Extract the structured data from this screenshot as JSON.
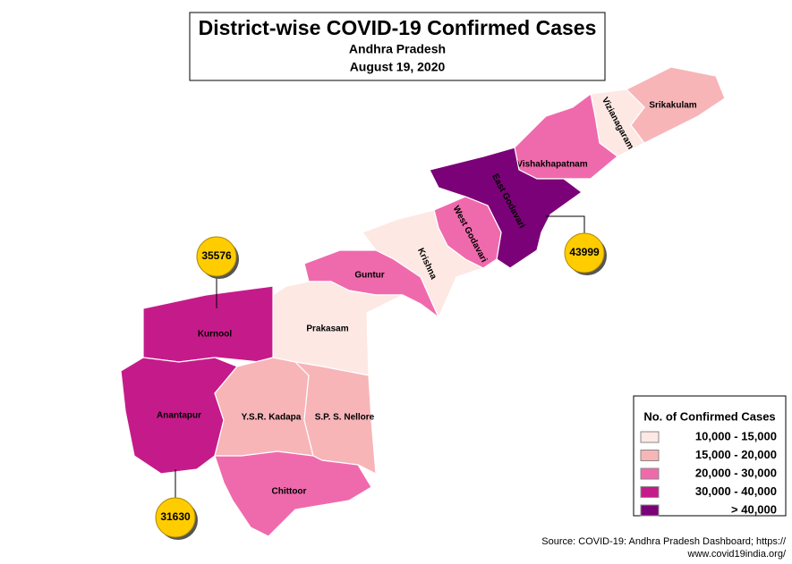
{
  "title": "District-wise COVID-19 Confirmed Cases",
  "subtitle": "Andhra Pradesh",
  "date": "August 19, 2020",
  "legend": {
    "title": "No. of Confirmed Cases",
    "entries": [
      {
        "label": "10,000 - 15,000",
        "color": "#fde8e4"
      },
      {
        "label": "15,000 - 20,000",
        "color": "#f7b5b8"
      },
      {
        "label": "20,000 - 30,000",
        "color": "#ef6aac"
      },
      {
        "label": "30,000 - 40,000",
        "color": "#c51b8a"
      },
      {
        "label": "> 40,000",
        "color": "#7a0177"
      }
    ]
  },
  "districts": [
    {
      "name": "Srikakulam",
      "range": 1
    },
    {
      "name": "Vizianagaram",
      "range": 0
    },
    {
      "name": "Vishakhapatnam",
      "range": 2
    },
    {
      "name": "East Godavari",
      "range": 4,
      "confirmed": 43999
    },
    {
      "name": "West Godavari",
      "range": 2
    },
    {
      "name": "Krishna",
      "range": 0
    },
    {
      "name": "Guntur",
      "range": 2
    },
    {
      "name": "Prakasam",
      "range": 0
    },
    {
      "name": "Kurnool",
      "range": 3,
      "confirmed": 35576
    },
    {
      "name": "Anantapur",
      "range": 3,
      "confirmed": 31630
    },
    {
      "name": "Y.S.R. Kadapa",
      "range": 1
    },
    {
      "name": "S.P. S. Nellore",
      "range": 1
    },
    {
      "name": "Chittoor",
      "range": 2
    }
  ],
  "source": [
    "Source: COVID-19: Andhra Pradesh Dashboard; https://",
    "www.covid19india.org/"
  ]
}
